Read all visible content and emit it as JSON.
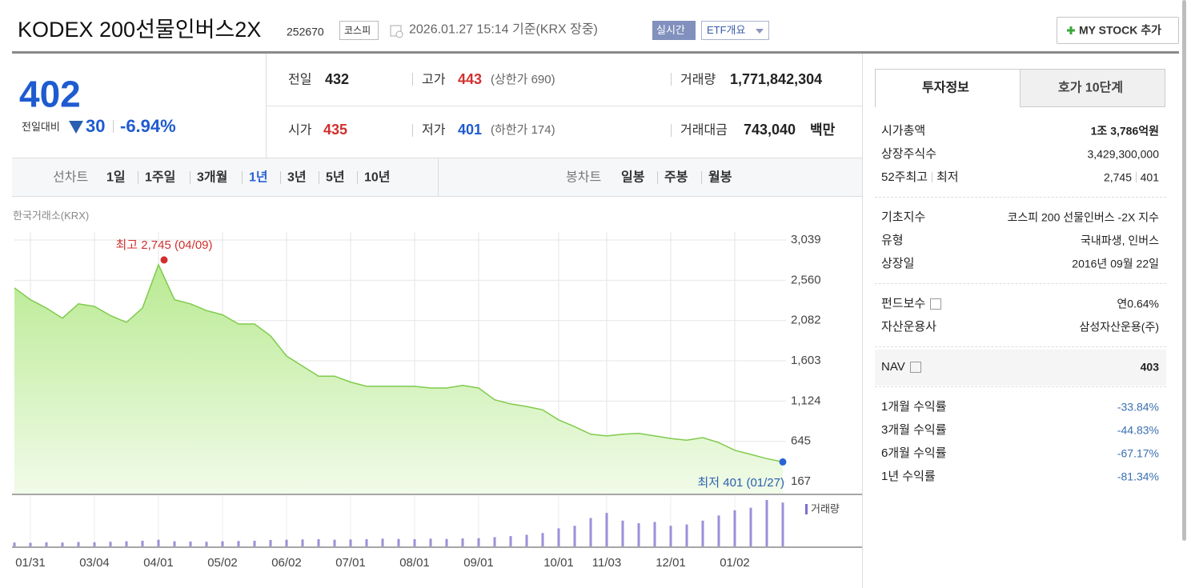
{
  "header": {
    "title": "KODEX 200선물인버스2X",
    "code": "252670",
    "market": "코스피",
    "timestamp": "2026.01.27 15:14 기준(KRX 장중)",
    "realtime": "실시간",
    "etf": "ETF개요",
    "my_stock": "MY STOCK 추가"
  },
  "quote": {
    "price": "402",
    "change_label": "전일대비",
    "change": "30",
    "rate": "-6.94%"
  },
  "stats": [
    {
      "label": "전일",
      "value": "432"
    },
    {
      "label": "고가",
      "value": "443",
      "note": "(상한가 690)"
    },
    {
      "label": "거래량",
      "value": "1,771,842,304"
    },
    {
      "label": "시가",
      "value": "435"
    },
    {
      "label": "저가",
      "value": "401",
      "note": "(하한가 174)"
    },
    {
      "label": "거래대금",
      "value": "743,040",
      "unit": "백만"
    }
  ],
  "chart_tabs": {
    "line_label": "선차트",
    "periods": [
      "1일",
      "1주일",
      "3개월",
      "1년",
      "3년",
      "5년",
      "10년"
    ],
    "active": 3,
    "candle_label": "봉차트",
    "candles": [
      "일봉",
      "주봉",
      "월봉"
    ]
  },
  "chart_data": {
    "type": "line",
    "source": "한국거래소(KRX)",
    "color": "#7fcb4c",
    "x": [
      0,
      1,
      2,
      3,
      4,
      5,
      6,
      7,
      8,
      9,
      10,
      11,
      12,
      13,
      14,
      15,
      16,
      17,
      18,
      19,
      20,
      21,
      22,
      23,
      24,
      25,
      26,
      27,
      28,
      29,
      30,
      31,
      32,
      33,
      34,
      35,
      36,
      37,
      38,
      39,
      40,
      41,
      42,
      43,
      44,
      45,
      46,
      47,
      48
    ],
    "values": [
      2470,
      2330,
      2230,
      2110,
      2280,
      2250,
      2140,
      2060,
      2230,
      2745,
      2330,
      2280,
      2200,
      2150,
      2040,
      2040,
      1900,
      1660,
      1540,
      1420,
      1420,
      1350,
      1300,
      1300,
      1300,
      1300,
      1280,
      1280,
      1310,
      1280,
      1140,
      1090,
      1060,
      1020,
      900,
      820,
      730,
      710,
      730,
      740,
      710,
      680,
      660,
      690,
      630,
      540,
      490,
      440,
      401
    ],
    "xlim": [
      0,
      48
    ],
    "xticks": [
      {
        "value": 1,
        "label": "01/31"
      },
      {
        "value": 5,
        "label": "03/04"
      },
      {
        "value": 9,
        "label": "04/01"
      },
      {
        "value": 13,
        "label": "05/02"
      },
      {
        "value": 17,
        "label": "06/02"
      },
      {
        "value": 21,
        "label": "07/01"
      },
      {
        "value": 25,
        "label": "08/01"
      },
      {
        "value": 29,
        "label": "09/01"
      },
      {
        "value": 34,
        "label": "10/01"
      },
      {
        "value": 37,
        "label": "11/03"
      },
      {
        "value": 41,
        "label": "12/01"
      },
      {
        "value": 45,
        "label": "01/02"
      }
    ],
    "ylim": [
      167,
      3039
    ],
    "yticks": [
      {
        "value": 3039,
        "label": "3,039"
      },
      {
        "value": 2560,
        "label": "2,560"
      },
      {
        "value": 2082,
        "label": "2,082"
      },
      {
        "value": 1603,
        "label": "1,603"
      },
      {
        "value": 1124,
        "label": "1,124"
      },
      645,
      167
    ],
    "grid": true,
    "annotations": [
      {
        "text": "최고 2,745 (04/09)",
        "color": "#d0302f"
      },
      {
        "text": "최저 401 (01/27)",
        "color": "#2a5fb0"
      }
    ],
    "volume": {
      "name": "거래량",
      "color": "#9a90d8",
      "values": [
        150000000,
        140000000,
        160000000,
        150000000,
        170000000,
        160000000,
        180000000,
        200000000,
        220000000,
        260000000,
        200000000,
        190000000,
        180000000,
        200000000,
        210000000,
        220000000,
        250000000,
        260000000,
        270000000,
        280000000,
        260000000,
        270000000,
        280000000,
        300000000,
        290000000,
        280000000,
        300000000,
        290000000,
        310000000,
        320000000,
        360000000,
        400000000,
        450000000,
        520000000,
        700000000,
        800000000,
        1100000000,
        1300000000,
        1000000000,
        900000000,
        950000000,
        800000000,
        850000000,
        1000000000,
        1200000000,
        1400000000,
        1500000000,
        1800000000,
        1700000000
      ]
    }
  },
  "info": {
    "tabs": [
      "투자정보",
      "호가 10단계"
    ],
    "groups": [
      [
        {
          "label": "시가총액",
          "value": "1조 3,786억원",
          "strong": true
        },
        {
          "label": "상장주식수",
          "value": "3,429,300,000"
        },
        {
          "label": "52주최고",
          "label2": "최저",
          "value": "2,745",
          "value2": "401"
        }
      ],
      [
        {
          "label": "기초지수",
          "value": "코스피 200 선물인버스 -2X 지수"
        },
        {
          "label": "유형",
          "value": "국내파생, 인버스"
        },
        {
          "label": "상장일",
          "value": "2016년 09월 22일"
        }
      ],
      [
        {
          "label": "펀드보수",
          "value": "연0.64%",
          "icon": true
        },
        {
          "label": "자산운용사",
          "value": "삼성자산운용(주)"
        }
      ],
      [
        {
          "label": "NAV",
          "value": "403",
          "icon": true,
          "strong": true
        }
      ],
      [
        {
          "label": "1개월 수익률",
          "value": "-33.84%",
          "return": true
        },
        {
          "label": "3개월 수익률",
          "value": "-44.83%",
          "return": true
        },
        {
          "label": "6개월 수익률",
          "value": "-67.17%",
          "return": true
        },
        {
          "label": "1년 수익률",
          "value": "-81.34%",
          "return": true
        }
      ]
    ]
  }
}
